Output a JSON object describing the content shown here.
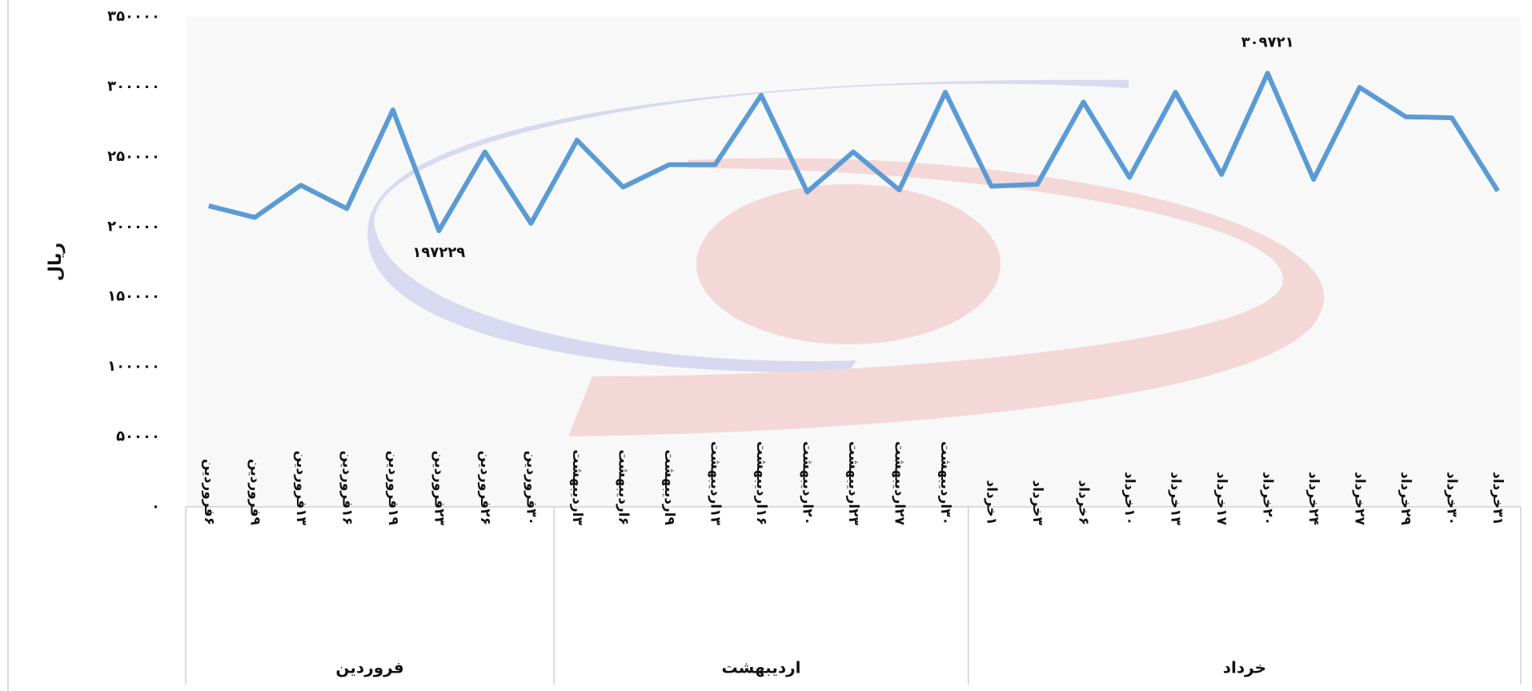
{
  "chart_data": {
    "type": "line",
    "y_label": "ریال",
    "groups": [
      {
        "label": "فروردین",
        "categories": [
          "۶فروردین",
          "۹فروردین",
          "۱۳فروردین",
          "۱۶فروردین",
          "۱۹فروردین",
          "۲۳فروردین",
          "۲۶فروردین",
          "۳۰فروردین"
        ]
      },
      {
        "label": "اردیبهشت",
        "categories": [
          "۳اردیبهشت",
          "۶اردیبهشت",
          "۹اردیبهشت",
          "۱۳اردیبهشت",
          "۱۶اردیبهشت",
          "۲۰اردیبهشت",
          "۲۳اردیبهشت",
          "۲۷اردیبهشت",
          "۳۰اردیبهشت"
        ]
      },
      {
        "label": "خرداد",
        "categories": [
          "۱خرداد",
          "۳خرداد",
          "۶خرداد",
          "۱۰خرداد",
          "۱۳خرداد",
          "۱۷خرداد",
          "۲۰خرداد",
          "۲۴خرداد",
          "۲۷خرداد",
          "۲۹خرداد",
          "۳۰خرداد",
          "۳۱خرداد"
        ]
      }
    ],
    "series": [
      {
        "color": "#5b9bd5",
        "values": [
          215000,
          206700,
          229700,
          213000,
          283500,
          197229,
          253500,
          202500,
          261900,
          228400,
          244400,
          244400,
          294000,
          224900,
          253500,
          226300,
          296100,
          229000,
          230400,
          289100,
          235300,
          296100,
          237400,
          309721,
          233900,
          299600,
          278600,
          277900,
          225600
        ],
        "value_labels": [
          null,
          null,
          null,
          null,
          null,
          "۱۹۷۲۲۹",
          null,
          null,
          null,
          null,
          null,
          null,
          null,
          null,
          null,
          null,
          null,
          null,
          null,
          null,
          null,
          null,
          null,
          "۳۰۹۷۲۱",
          null,
          null,
          null,
          null,
          null
        ]
      }
    ],
    "ylim": [
      0,
      350000
    ],
    "yticks": [
      {
        "value": 0,
        "label": "۰"
      },
      {
        "value": 50000,
        "label": "۵۰۰۰۰"
      },
      {
        "value": 100000,
        "label": "۱۰۰۰۰۰"
      },
      {
        "value": 150000,
        "label": "۱۵۰۰۰۰"
      },
      {
        "value": 200000,
        "label": "۲۰۰۰۰۰"
      },
      {
        "value": 250000,
        "label": "۲۵۰۰۰۰"
      },
      {
        "value": 300000,
        "label": "۳۰۰۰۰۰"
      },
      {
        "value": 350000,
        "label": "۳۵۰۰۰۰"
      }
    ]
  }
}
